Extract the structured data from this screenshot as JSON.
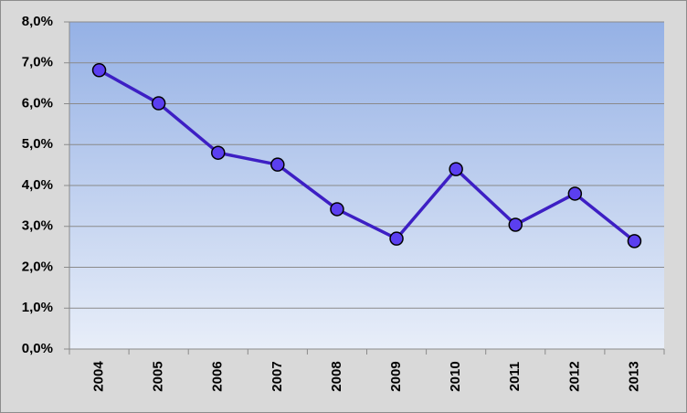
{
  "chart_data": {
    "type": "line",
    "categories": [
      "2004",
      "2005",
      "2006",
      "2007",
      "2008",
      "2009",
      "2010",
      "2011",
      "2012",
      "2013"
    ],
    "values": [
      6.82,
      6.01,
      4.8,
      4.51,
      3.42,
      2.7,
      4.4,
      3.04,
      3.8,
      2.64
    ],
    "color": "#3d1fc4",
    "marker_color": "#5b3ff0",
    "ylim": [
      0,
      8
    ],
    "yticks": [
      {
        "value": 0,
        "label": "0,0%"
      },
      {
        "value": 1,
        "label": "1,0%"
      },
      {
        "value": 2,
        "label": "2,0%"
      },
      {
        "value": 3,
        "label": "3,0%"
      },
      {
        "value": 4,
        "label": "4,0%"
      },
      {
        "value": 5,
        "label": "5,0%"
      },
      {
        "value": 6,
        "label": "6,0%"
      },
      {
        "value": 7,
        "label": "7,0%"
      },
      {
        "value": 8,
        "label": "8,0%"
      }
    ],
    "grid": true
  }
}
